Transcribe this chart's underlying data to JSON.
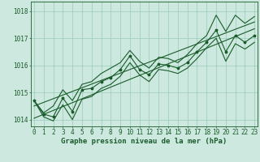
{
  "x": [
    0,
    1,
    2,
    3,
    4,
    5,
    6,
    7,
    8,
    9,
    10,
    11,
    12,
    13,
    14,
    15,
    16,
    17,
    18,
    19,
    20,
    21,
    22,
    23
  ],
  "y_main": [
    1014.7,
    1014.2,
    1014.1,
    1014.8,
    1014.3,
    1015.1,
    1015.15,
    1015.4,
    1015.55,
    1015.85,
    1016.35,
    1015.85,
    1015.65,
    1016.05,
    1016.0,
    1015.9,
    1016.1,
    1016.5,
    1016.85,
    1017.3,
    1016.5,
    1017.1,
    1016.85,
    1017.1
  ],
  "y_upper": [
    1014.7,
    1014.25,
    1014.5,
    1015.1,
    1014.7,
    1015.3,
    1015.4,
    1015.7,
    1015.9,
    1016.1,
    1016.55,
    1016.15,
    1015.9,
    1016.3,
    1016.25,
    1016.1,
    1016.4,
    1016.8,
    1017.1,
    1017.85,
    1017.25,
    1017.85,
    1017.55,
    1017.8
  ],
  "y_lower": [
    1014.7,
    1014.1,
    1013.95,
    1014.55,
    1014.0,
    1014.75,
    1014.85,
    1015.15,
    1015.3,
    1015.6,
    1016.1,
    1015.65,
    1015.4,
    1015.85,
    1015.8,
    1015.7,
    1015.9,
    1016.25,
    1016.65,
    1017.0,
    1016.15,
    1016.8,
    1016.6,
    1016.85
  ],
  "trend1_x": [
    0,
    23
  ],
  "trend1_y": [
    1014.05,
    1017.35
  ],
  "trend2_x": [
    0,
    23
  ],
  "trend2_y": [
    1014.5,
    1017.6
  ],
  "ylim_min": 1013.75,
  "ylim_max": 1018.35,
  "yticks": [
    1014,
    1015,
    1016,
    1017,
    1018
  ],
  "xticks": [
    0,
    1,
    2,
    3,
    4,
    5,
    6,
    7,
    8,
    9,
    10,
    11,
    12,
    13,
    14,
    15,
    16,
    17,
    18,
    19,
    20,
    21,
    22,
    23
  ],
  "xlabel": "Graphe pression niveau de la mer (hPa)",
  "bg_color": "#cce8df",
  "line_color": "#1a5c2a",
  "grid_color": "#99ccbb",
  "tick_fontsize": 5.5,
  "label_fontsize": 6.5
}
